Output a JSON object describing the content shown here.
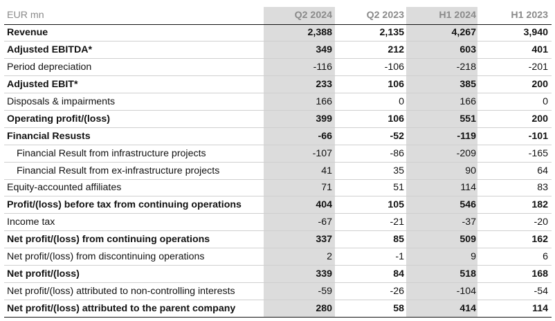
{
  "table": {
    "unit_label": "EUR mn",
    "columns": [
      "Q2 2024",
      "Q2 2023",
      "H1 2024",
      "H1 2023"
    ],
    "rows": [
      {
        "label": "Revenue",
        "bold": true,
        "indent": false,
        "values": [
          "2,388",
          "2,135",
          "4,267",
          "3,940"
        ]
      },
      {
        "label": "Adjusted EBITDA*",
        "bold": true,
        "indent": false,
        "values": [
          "349",
          "212",
          "603",
          "401"
        ]
      },
      {
        "label": "Period depreciation",
        "bold": false,
        "indent": false,
        "values": [
          "-116",
          "-106",
          "-218",
          "-201"
        ]
      },
      {
        "label": "Adjusted EBIT*",
        "bold": true,
        "indent": false,
        "values": [
          "233",
          "106",
          "385",
          "200"
        ]
      },
      {
        "label": "Disposals & impairments",
        "bold": false,
        "indent": false,
        "values": [
          "166",
          "0",
          "166",
          "0"
        ]
      },
      {
        "label": "Operating profit/(loss)",
        "bold": true,
        "indent": false,
        "values": [
          "399",
          "106",
          "551",
          "200"
        ]
      },
      {
        "label": "Financial Resusts",
        "bold": true,
        "indent": false,
        "values": [
          "-66",
          "-52",
          "-119",
          "-101"
        ]
      },
      {
        "label": "Financial Result from infrastructure projects",
        "bold": false,
        "indent": true,
        "values": [
          "-107",
          "-86",
          "-209",
          "-165"
        ]
      },
      {
        "label": "Financial Result from ex-infrastructure projects",
        "bold": false,
        "indent": true,
        "values": [
          "41",
          "35",
          "90",
          "64"
        ]
      },
      {
        "label": "Equity-accounted affiliates",
        "bold": false,
        "indent": false,
        "values": [
          "71",
          "51",
          "114",
          "83"
        ]
      },
      {
        "label": "Profit/(loss) before tax from continuing operations",
        "bold": true,
        "indent": false,
        "values": [
          "404",
          "105",
          "546",
          "182"
        ]
      },
      {
        "label": "Income tax",
        "bold": false,
        "indent": false,
        "values": [
          "-67",
          "-21",
          "-37",
          "-20"
        ]
      },
      {
        "label": "Net profit/(loss) from continuing operations",
        "bold": true,
        "indent": false,
        "values": [
          "337",
          "85",
          "509",
          "162"
        ]
      },
      {
        "label": "Net profit/(loss) from discontinuing operations",
        "bold": false,
        "indent": false,
        "values": [
          "2",
          "-1",
          "9",
          "6"
        ]
      },
      {
        "label": "Net profit/(loss)",
        "bold": true,
        "indent": false,
        "values": [
          "339",
          "84",
          "518",
          "168"
        ]
      },
      {
        "label": "Net profit/(loss) attributed to non-controlling interests",
        "bold": false,
        "indent": false,
        "values": [
          "-59",
          "-26",
          "-104",
          "-54"
        ]
      },
      {
        "label": "Net profit/(loss) attributed to the parent company",
        "bold": true,
        "indent": false,
        "values": [
          "280",
          "58",
          "414",
          "114"
        ]
      }
    ]
  }
}
